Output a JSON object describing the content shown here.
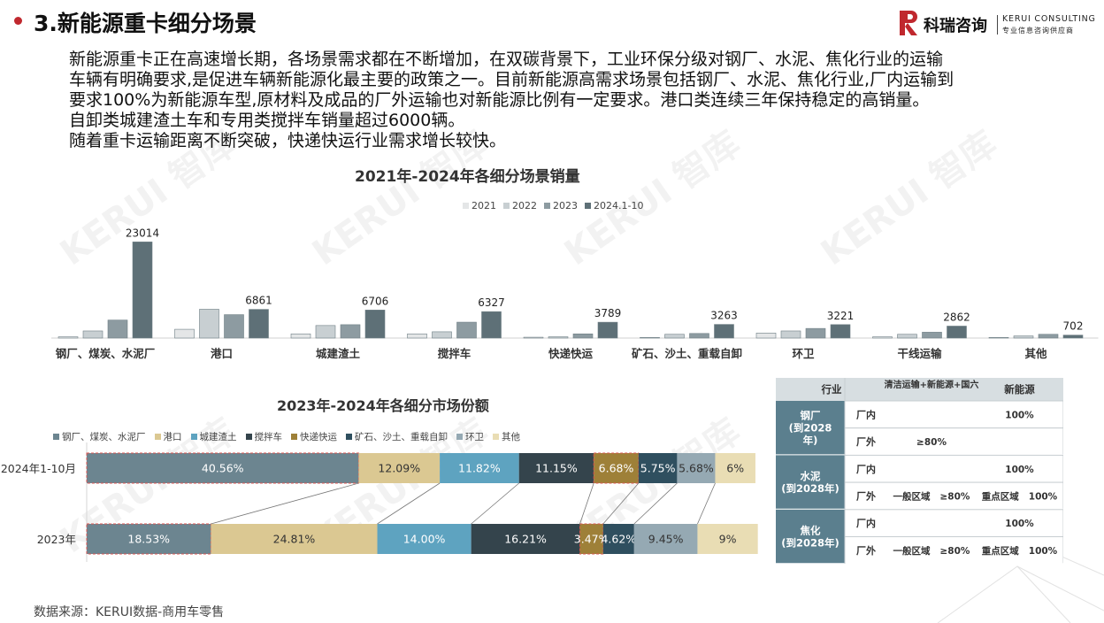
{
  "header": {
    "title": "3.新能源重卡细分场景",
    "logo_cn": "科瑞咨询",
    "logo_en": "KERUI CONSULTING",
    "logo_sub": "专业信息咨询供应商"
  },
  "watermark": "KERUI 智库",
  "paragraph": [
    "新能源重卡正在高速增长期，各场景需求都在不断增加，在双碳背景下，工业环保分级对钢厂、水泥、焦化行业的运输",
    "车辆有明确要求,是促进车辆新能源化最主要的政策之一。目前新能源高需求场景包括钢厂、水泥、焦化行业,厂内运输到",
    "要求100%为新能源车型,原材料及成品的厂外运输也对新能源比例有一定要求。港口类连续三年保持稳定的高销量。",
    "自卸类城建渣土车和专用类搅拌车销量超过6000辆。",
    "随着重卡运输距离不断突破，快递快运行业需求增长较快。"
  ],
  "chart_data": [
    {
      "type": "bar",
      "title": "2021年-2024年各细分场景销量",
      "legend_position": "top",
      "categories": [
        "钢厂、煤炭、水泥厂",
        "港口",
        "城建渣土",
        "搅拌车",
        "快递快运",
        "矿石、沙土、重载自卸",
        "环卫",
        "干线运输",
        "其他"
      ],
      "series": [
        {
          "name": "2021",
          "color": "#e4e6e7",
          "values": [
            300,
            2100,
            1000,
            1000,
            200,
            150,
            1200,
            300,
            150
          ]
        },
        {
          "name": "2022",
          "color": "#c8cfd2",
          "values": [
            1700,
            6900,
            3000,
            1500,
            300,
            900,
            1700,
            900,
            500
          ]
        },
        {
          "name": "2023",
          "color": "#8d9ba1",
          "values": [
            4300,
            5600,
            3200,
            3800,
            1000,
            1100,
            2300,
            1400,
            900
          ]
        },
        {
          "name": "2024.1-10",
          "color": "#5e7077",
          "values": [
            23014,
            6861,
            6706,
            6327,
            3789,
            3263,
            3221,
            2862,
            702
          ]
        }
      ],
      "data_labels_series": "2024.1-10",
      "ylim": [
        0,
        25000
      ],
      "grid": false
    },
    {
      "type": "bar",
      "stacked": "percent",
      "orientation": "horizontal",
      "title": "2023年-2024年各细分市场份额",
      "legend_position": "top",
      "categories": [
        "2024年1-10月",
        "2023年"
      ],
      "series": [
        {
          "name": "钢厂、煤炭、水泥厂",
          "color": "#6c8590",
          "values": [
            40.56,
            18.53
          ],
          "labels": [
            "40.56%",
            "18.53%"
          ]
        },
        {
          "name": "港口",
          "color": "#dbc892",
          "values": [
            12.09,
            24.81
          ],
          "labels": [
            "12.09%",
            "24.81%"
          ]
        },
        {
          "name": "城建渣土",
          "color": "#5ea3c0",
          "values": [
            11.82,
            14.0
          ],
          "labels": [
            "11.82%",
            "14.00%"
          ]
        },
        {
          "name": "搅拌车",
          "color": "#34444c",
          "values": [
            11.15,
            16.21
          ],
          "labels": [
            "11.15%",
            "16.21%"
          ]
        },
        {
          "name": "快递快运",
          "color": "#9e8038",
          "values": [
            6.68,
            3.47
          ],
          "labels": [
            "6.68%",
            "3.47%"
          ]
        },
        {
          "name": "矿石、沙土、重载自卸",
          "color": "#2f4f5f",
          "values": [
            5.75,
            4.62
          ],
          "labels": [
            "5.75%",
            "4.62%"
          ]
        },
        {
          "name": "环卫",
          "color": "#95a9b3",
          "values": [
            5.68,
            9.45
          ],
          "labels": [
            "5.68%",
            "9.45%"
          ]
        },
        {
          "name": "其他",
          "color": "#e9ddb4",
          "values": [
            6,
            9
          ],
          "labels": [
            "6%",
            "9%"
          ]
        }
      ],
      "xlim": [
        0,
        100
      ]
    }
  ],
  "policy_table": {
    "headers": [
      "行业",
      "清洁运输+新能源+国六",
      "新能源"
    ],
    "groups": [
      {
        "industry": "钢厂\n(到2028\n年)",
        "rows": [
          {
            "scope": "厂内",
            "cells": [
              "",
              "100%"
            ]
          },
          {
            "scope": "厂外",
            "cells": [
              "≥80%",
              ""
            ]
          }
        ]
      },
      {
        "industry": "水泥\n(到2028年)",
        "rows": [
          {
            "scope": "厂内",
            "cells": [
              "",
              "100%"
            ]
          },
          {
            "scope": "厂外",
            "cells": [
              "一般区域 ≥80%",
              "重点区域 100%"
            ]
          }
        ]
      },
      {
        "industry": "焦化\n(到2028年)",
        "rows": [
          {
            "scope": "厂内",
            "cells": [
              "",
              "100%"
            ]
          },
          {
            "scope": "厂外",
            "cells": [
              "一般区域 ≥80%",
              "重点区域 100%"
            ]
          }
        ]
      }
    ],
    "header_bg": "#d7dee1",
    "side_bg": "#5b7f8e"
  },
  "source": "数据来源：KERUI数据-商用车零售"
}
